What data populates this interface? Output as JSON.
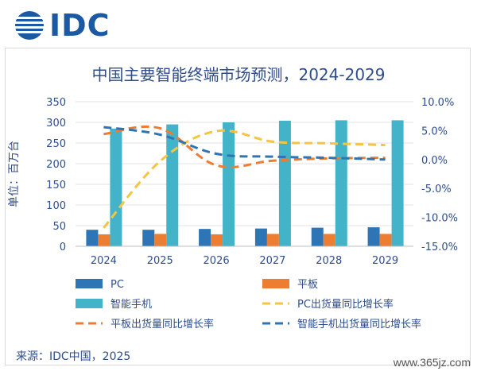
{
  "logo": {
    "text": "IDC",
    "color": "#1b5aa3"
  },
  "source_note": "来源：IDC中国，2025",
  "watermark": "www.365jz.com",
  "colors": {
    "pc": "#2e75b6",
    "tablet": "#ed7d31",
    "phone": "#42b3c8",
    "pc_growth": "#f5c542",
    "tablet_growth": "#ed7d31",
    "phone_growth": "#2e75b6",
    "text": "#2f4d8a"
  },
  "chart_data": {
    "type": "bar",
    "title": "中国主要智能终端市场预测，2024-2029",
    "ylabel": "单位：百万台",
    "categories": [
      "2024",
      "2025",
      "2026",
      "2027",
      "2028",
      "2029"
    ],
    "y_left": {
      "lim": [
        0,
        350
      ],
      "ticks": [
        "0",
        "50",
        "100",
        "150",
        "200",
        "250",
        "300",
        "350"
      ]
    },
    "y_right": {
      "lim": [
        -15,
        10
      ],
      "ticks": [
        "-15.0%",
        "-10.0%",
        "-5.0%",
        "0.0%",
        "5.0%",
        "10.0%"
      ]
    },
    "bar_series": [
      {
        "name": "PC",
        "values": [
          40,
          40,
          42,
          43,
          45,
          46
        ]
      },
      {
        "name": "平板",
        "values": [
          29,
          30,
          29,
          30,
          30,
          30
        ]
      },
      {
        "name": "智能手机",
        "values": [
          285,
          295,
          300,
          304,
          305,
          305
        ]
      }
    ],
    "line_series": [
      {
        "name": "PC出货量同比增长率",
        "values": [
          -11.8,
          -0.3,
          4.9,
          3.1,
          2.8,
          2.5
        ]
      },
      {
        "name": "平板出货量同比增长率",
        "values": [
          4.4,
          5.4,
          -1.0,
          -0.2,
          0.2,
          0.3
        ]
      },
      {
        "name": "智能手机出货量同比增长率",
        "values": [
          5.6,
          4.3,
          1.0,
          0.5,
          0.3,
          0.0
        ]
      }
    ],
    "legend": {
      "placement": "bottom",
      "items": [
        "PC",
        "平板",
        "智能手机",
        "PC出货量同比增长率",
        "平板出货量同比增长率",
        "智能手机出货量同比增长率"
      ]
    },
    "grid": true
  }
}
